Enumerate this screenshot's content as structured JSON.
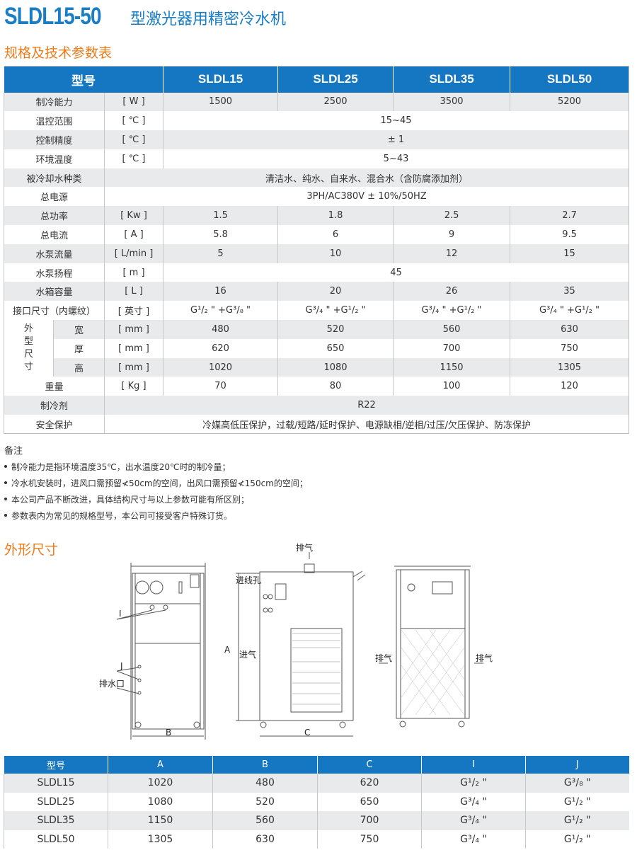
{
  "header": {
    "model": "SLDL15-50",
    "name": "型激光器用精密冷水机"
  },
  "spec_section_title": "规格及技术参数表",
  "spec": {
    "head_label": "型号",
    "models": [
      "SLDL15",
      "SLDL25",
      "SLDL35",
      "SLDL50"
    ],
    "rows": [
      {
        "label": "制冷能力",
        "unit": "[ W ]",
        "values": [
          "1500",
          "2500",
          "3500",
          "5200"
        ]
      },
      {
        "label": "温控范围",
        "unit": "[ ℃ ]",
        "span": "15~45"
      },
      {
        "label": "控制精度",
        "unit": "[ ℃ ]",
        "span": "± 1"
      },
      {
        "label": "环境温度",
        "unit": "[ ℃ ]",
        "span": "5~43"
      },
      {
        "label": "被冷却水种类",
        "span": "清洁水、纯水、自来水、混合水（含防腐添加剂）"
      },
      {
        "label": "总电源",
        "span": "3PH/AC380V ± 10%/50HZ"
      },
      {
        "label": "总功率",
        "unit": "[ Kw ]",
        "values": [
          "1.5",
          "1.8",
          "2.5",
          "2.7"
        ]
      },
      {
        "label": "总电流",
        "unit": "[ A ]",
        "values": [
          "5.8",
          "6",
          "9",
          "9.5"
        ]
      },
      {
        "label": "水泵流量",
        "unit": "[ L/min ]",
        "values": [
          "5",
          "10",
          "12",
          "15"
        ]
      },
      {
        "label": "水泵扬程",
        "unit": "[ m ]",
        "span": "45"
      },
      {
        "label": "水箱容量",
        "unit": "[ L ]",
        "values": [
          "16",
          "20",
          "26",
          "35"
        ]
      },
      {
        "label": "接口尺寸（内螺纹）",
        "unit": "[ 英寸 ]",
        "values": [
          "G¹/₂ \" +G³/₈ \"",
          "G³/₄ \" +G¹/₂ \"",
          "G³/₄ \" +G¹/₂ \"",
          "G³/₄ \" +G¹/₂ \""
        ]
      },
      {
        "group": "外型尺寸",
        "label": "宽",
        "unit": "[ mm ]",
        "values": [
          "480",
          "520",
          "560",
          "630"
        ]
      },
      {
        "label": "厚",
        "unit": "[ mm ]",
        "values": [
          "620",
          "650",
          "700",
          "750"
        ]
      },
      {
        "label": "高",
        "unit": "[ mm ]",
        "values": [
          "1020",
          "1080",
          "1150",
          "1305"
        ]
      },
      {
        "label": "重量",
        "unit": "[ Kg ]",
        "values": [
          "70",
          "80",
          "100",
          "120"
        ]
      },
      {
        "label": "制冷剂",
        "span": "R22"
      },
      {
        "label": "安全保护",
        "span": "冷媒高低压保护，过载/短路/延时保护、电源缺相/逆相/过压/欠压保护、防冻保护"
      }
    ]
  },
  "notes": {
    "title": "备注",
    "items": [
      "制冷能力是指环境温度35℃，出水温度20℃时的制冷量；",
      "冷水机安装时，进风口需预留≮50cm的空间，出风口需预留≮150cm的空间；",
      "本公司产品不断改进，具体结构尺寸与以上参数可能有所区别；",
      "参数表内为常见的规格型号，本公司可接受客户特殊订货。"
    ]
  },
  "dims_section_title": "外形尺寸",
  "drawing": {
    "exhaust": "排气",
    "inlet_hole": "进线孔",
    "intake": "进气",
    "label_I": "I",
    "label_J": "J",
    "drain": "排水口",
    "dim_A": "A",
    "dim_B": "B",
    "dim_C": "C"
  },
  "dims": {
    "headers": [
      "型号",
      "A",
      "B",
      "C",
      "I",
      "J"
    ],
    "rows": [
      [
        "SLDL15",
        "1020",
        "480",
        "620",
        "G¹/₂ \"",
        "G³/₈ \""
      ],
      [
        "SLDL25",
        "1080",
        "520",
        "650",
        "G³/₄ \"",
        "G¹/₂ \""
      ],
      [
        "SLDL35",
        "1150",
        "560",
        "700",
        "G³/₄ \"",
        "G¹/₂ \""
      ],
      [
        "SLDL50",
        "1305",
        "630",
        "750",
        "G³/₄ \"",
        "G¹/₂ \""
      ]
    ]
  },
  "colors": {
    "brand_blue": "#1577c2",
    "accent_orange": "#ee7a1a",
    "row_gray": "#e9eaeb"
  }
}
